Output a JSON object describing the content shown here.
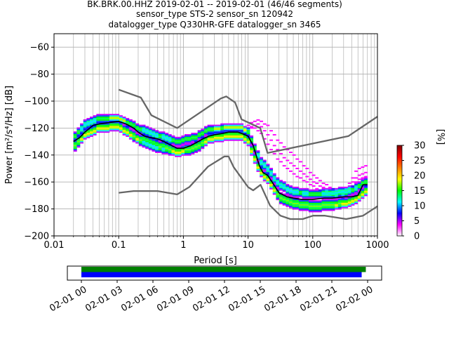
{
  "chart_data": {
    "type": "heatmap",
    "title_lines": [
      "BK.BRK.00.HHZ   2019-02-01 -- 2019-02-01  (46/46 segments)",
      "sensor_type STS-2 sensor_sn 120942",
      "datalogger_type Q330HR-GFE datalogger_sn 3465"
    ],
    "xlabel": "Period [s]",
    "ylabel": "Power [m²/s⁴/Hz] [dB]",
    "xscale": "log",
    "xlim": [
      0.01,
      1000
    ],
    "ylim": [
      -200,
      -50
    ],
    "grid": true,
    "x_ticks": [
      {
        "value": 0.01,
        "label": "0.01"
      },
      {
        "value": 0.1,
        "label": "0.1"
      },
      {
        "value": 1,
        "label": "1"
      },
      {
        "value": 10,
        "label": "10"
      },
      {
        "value": 100,
        "label": "100"
      },
      {
        "value": 1000,
        "label": "1000"
      }
    ],
    "y_ticks": [
      {
        "value": -60,
        "label": "−60"
      },
      {
        "value": -80,
        "label": "−80"
      },
      {
        "value": -100,
        "label": "−100"
      },
      {
        "value": -120,
        "label": "−120"
      },
      {
        "value": -140,
        "label": "−140"
      },
      {
        "value": -160,
        "label": "−160"
      },
      {
        "value": -180,
        "label": "−180"
      },
      {
        "value": -200,
        "label": "−200"
      }
    ],
    "nhnm": {
      "x": [
        0.1,
        0.22,
        0.32,
        0.8,
        3.8,
        4.6,
        6.3,
        7.9,
        15.4,
        20,
        354.8,
        1000
      ],
      "y": [
        -91.5,
        -97.4,
        -110.5,
        -120,
        -98,
        -96.5,
        -101,
        -113.5,
        -120,
        -138.5,
        -126,
        -111.5
      ]
    },
    "nlnm": {
      "x": [
        0.1,
        0.17,
        0.4,
        0.8,
        1.24,
        2.4,
        4.3,
        5,
        6,
        10,
        12,
        15.6,
        21.9,
        31.6,
        45,
        70,
        101,
        154,
        328,
        600,
        1000
      ],
      "y": [
        -168,
        -166.7,
        -166.7,
        -169.2,
        -163.7,
        -148.6,
        -141.1,
        -141.1,
        -149,
        -163.8,
        -166.2,
        -162.1,
        -177.5,
        -185,
        -187.5,
        -187.5,
        -185,
        -185,
        -187.5,
        -185,
        -178
      ]
    },
    "mean_curve": {
      "x": [
        0.02,
        0.025,
        0.03,
        0.04,
        0.05,
        0.07,
        0.1,
        0.13,
        0.17,
        0.2,
        0.25,
        0.3,
        0.4,
        0.5,
        0.6,
        0.8,
        1,
        1.3,
        1.7,
        2,
        2.5,
        3,
        4,
        5,
        6,
        7,
        8,
        10,
        12,
        15,
        17,
        20,
        25,
        30,
        40,
        50,
        70,
        100,
        150,
        200,
        300,
        400,
        500,
        600,
        700
      ],
      "y": [
        -130,
        -127,
        -123,
        -118,
        -117,
        -116,
        -115,
        -117,
        -120,
        -123,
        -126,
        -127,
        -128,
        -130,
        -132,
        -135,
        -135,
        -133,
        -130,
        -128,
        -126,
        -125,
        -124,
        -123,
        -123,
        -123,
        -124,
        -126,
        -133,
        -148,
        -153,
        -155,
        -162,
        -168,
        -171,
        -172,
        -173,
        -173,
        -172,
        -172,
        -171,
        -171,
        -170,
        -162,
        -162
      ]
    },
    "psd_traces": [
      {
        "x": [
          0.02,
          0.03,
          0.05,
          0.1,
          0.2,
          0.4,
          0.8,
          1.5,
          2.5,
          5,
          8,
          10,
          15,
          20,
          30,
          50,
          100,
          200,
          400,
          700
        ],
        "y": [
          -128,
          -119,
          -114,
          -113,
          -121,
          -127,
          -131,
          -128,
          -122,
          -120,
          -120,
          -124,
          -145,
          -152,
          -163,
          -169,
          -170,
          -170,
          -168,
          -160
        ]
      },
      {
        "x": [
          0.02,
          0.03,
          0.05,
          0.1,
          0.2,
          0.4,
          0.8,
          1.5,
          2.5,
          5,
          8,
          10,
          15,
          20,
          30,
          50,
          100,
          200,
          400,
          700
        ],
        "y": [
          -132,
          -123,
          -118,
          -117,
          -126,
          -131,
          -136,
          -133,
          -126,
          -124,
          -124,
          -128,
          -150,
          -156,
          -169,
          -174,
          -176,
          -175,
          -173,
          -164
        ]
      },
      {
        "x": [
          0.02,
          0.03,
          0.05,
          0.1,
          0.2,
          0.4,
          0.8,
          1.5,
          2.5,
          5,
          8,
          10,
          15,
          20,
          30,
          50,
          100,
          200,
          400,
          700
        ],
        "y": [
          -136,
          -126,
          -121,
          -120,
          -130,
          -136,
          -139,
          -137,
          -129,
          -127,
          -127,
          -131,
          -153,
          -159,
          -173,
          -178,
          -180,
          -179,
          -176,
          -167
        ]
      },
      {
        "x": [
          0.02,
          0.03,
          0.05,
          0.1,
          0.2,
          0.4,
          0.8,
          1.5,
          2.5,
          5,
          8,
          10,
          15,
          20,
          30,
          50,
          100,
          200,
          400,
          700
        ],
        "y": [
          -126,
          -116,
          -112,
          -112,
          -119,
          -124,
          -129,
          -126,
          -120,
          -119,
          -119,
          -122,
          -142,
          -149,
          -160,
          -166,
          -168,
          -167,
          -165,
          -158
        ]
      },
      {
        "x": [
          0.02,
          0.03,
          0.05,
          0.1,
          0.2,
          0.4,
          0.8,
          1.5,
          2.5,
          5,
          8,
          10,
          15,
          20,
          30,
          50,
          100,
          200,
          400,
          700
        ],
        "y": [
          -134,
          -125,
          -120,
          -119,
          -128,
          -133,
          -138,
          -135,
          -128,
          -126,
          -126,
          -130,
          -152,
          -158,
          -171,
          -176,
          -178,
          -177,
          -175,
          -166
        ]
      }
    ],
    "outlier_traces": [
      {
        "x": [
          8,
          10,
          12,
          15,
          20,
          30,
          50,
          80,
          120,
          200,
          300,
          500,
          700
        ],
        "y": [
          -122,
          -118,
          -115,
          -114,
          -118,
          -130,
          -140,
          -150,
          -158,
          -165,
          -168,
          -150,
          -148
        ]
      },
      {
        "x": [
          8,
          10,
          12,
          15,
          20,
          30,
          50,
          80,
          120,
          200,
          300,
          500,
          700
        ],
        "y": [
          -123,
          -120,
          -118,
          -117,
          -125,
          -138,
          -148,
          -156,
          -162,
          -168,
          -170,
          -155,
          -152
        ]
      },
      {
        "x": [
          8,
          10,
          12,
          15,
          20,
          30,
          50,
          80,
          120,
          200,
          300,
          500,
          700
        ],
        "y": [
          -124,
          -121,
          -120,
          -122,
          -132,
          -144,
          -154,
          -160,
          -165,
          -170,
          -172,
          -158,
          -155
        ]
      }
    ],
    "colorbar": {
      "label": "[%]",
      "min": 0,
      "max": 30,
      "ticks": [
        {
          "value": 0,
          "label": "0"
        },
        {
          "value": 5,
          "label": "5"
        },
        {
          "value": 10,
          "label": "10"
        },
        {
          "value": 15,
          "label": "15"
        },
        {
          "value": 20,
          "label": "20"
        },
        {
          "value": 25,
          "label": "25"
        },
        {
          "value": 30,
          "label": "30"
        }
      ],
      "stops": [
        "#ffffff",
        "#ff00ff",
        "#0000ff",
        "#00ffff",
        "#00ff00",
        "#ffff00",
        "#ff8000",
        "#ff0000",
        "#800000"
      ]
    },
    "timeline": {
      "start_hour": 0,
      "end_hour": 24,
      "bars": [
        {
          "color": "#008000",
          "start_hour": 0,
          "end_hour": 23.85
        },
        {
          "color": "#0000ff",
          "start_hour": 0,
          "end_hour": 23.5
        }
      ],
      "ticks": [
        {
          "hour": 0,
          "label": "02-01 00"
        },
        {
          "hour": 3,
          "label": "02-01 03"
        },
        {
          "hour": 6,
          "label": "02-01 06"
        },
        {
          "hour": 9,
          "label": "02-01 09"
        },
        {
          "hour": 12,
          "label": "02-01 12"
        },
        {
          "hour": 15,
          "label": "02-01 15"
        },
        {
          "hour": 18,
          "label": "02-01 18"
        },
        {
          "hour": 21,
          "label": "02-01 21"
        },
        {
          "hour": 24,
          "label": "02-02 00"
        }
      ]
    }
  }
}
